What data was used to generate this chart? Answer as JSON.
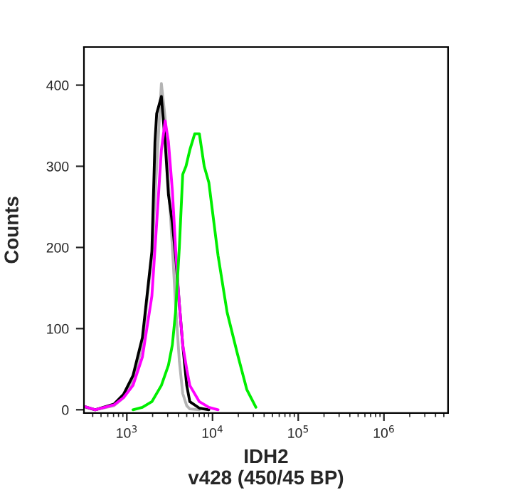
{
  "chart_data": {
    "type": "line",
    "xlabel": "IDH2\nv428 (450/45 BP)",
    "ylabel": "Counts",
    "log": "x",
    "xlim": [
      316,
      5600000
    ],
    "ylim": [
      -4,
      447
    ],
    "xticks": [
      {
        "value": 1000,
        "label": "10$^{3}$"
      },
      {
        "value": 10000,
        "label": "10$^{4}$"
      },
      {
        "value": 100000,
        "label": "10$^{5}$"
      },
      {
        "value": 1000000,
        "label": "10$^{6}$"
      }
    ],
    "yticks": [
      0,
      100,
      200,
      300,
      400
    ],
    "grid": false,
    "legend": false,
    "series": [
      {
        "color": "#b4b4b4",
        "x": [
          321,
          427,
          709,
          916,
          1180,
          1520,
          1960,
          2230,
          2530,
          2800,
          3060,
          3400,
          3700,
          4100,
          4490,
          5000,
          5430,
          7020
        ],
        "values": [
          3,
          0,
          5,
          15,
          35,
          80,
          190,
          300,
          402,
          360,
          280,
          200,
          130,
          60,
          20,
          5,
          1,
          0
        ]
      },
      {
        "color": "#000000",
        "x": [
          321,
          427,
          709,
          916,
          1180,
          1520,
          1960,
          2130,
          2230,
          2530,
          2800,
          3060,
          3400,
          3700,
          4100,
          4490,
          5000,
          5430,
          7020,
          9060
        ],
        "values": [
          4,
          0,
          7,
          19,
          42,
          89,
          195,
          330,
          365,
          386,
          330,
          265,
          230,
          190,
          130,
          80,
          30,
          10,
          2,
          0
        ]
      },
      {
        "color": "#ff00ff",
        "x": [
          321,
          427,
          709,
          916,
          1180,
          1520,
          1960,
          2230,
          2530,
          2800,
          3060,
          3400,
          3700,
          4100,
          4490,
          5000,
          5430,
          7020,
          9060,
          11600
        ],
        "values": [
          4,
          0,
          6,
          15,
          30,
          65,
          140,
          230,
          320,
          356,
          330,
          270,
          200,
          130,
          80,
          50,
          30,
          10,
          3,
          0
        ]
      },
      {
        "color": "#00ee00",
        "x": [
          1180,
          1520,
          1960,
          2530,
          3060,
          3400,
          3700,
          4100,
          4490,
          4900,
          5430,
          6200,
          7020,
          8000,
          9060,
          11600,
          14800,
          19400,
          25100,
          32100
        ],
        "values": [
          0,
          3,
          10,
          30,
          55,
          80,
          120,
          200,
          290,
          300,
          320,
          340,
          340,
          300,
          280,
          190,
          120,
          70,
          25,
          3
        ]
      }
    ]
  }
}
